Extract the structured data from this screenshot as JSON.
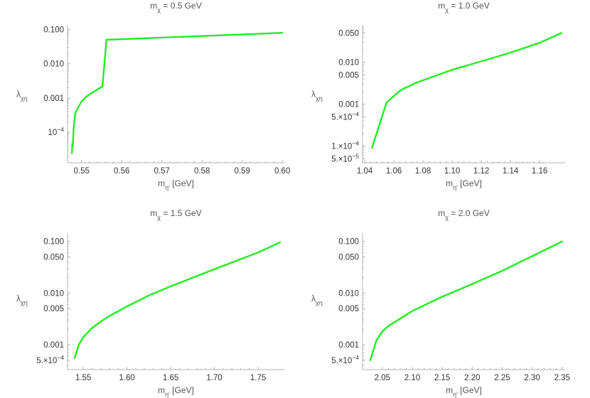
{
  "chart_data": [
    {
      "type": "line",
      "title": "m_χ = 0.5 GeV",
      "title_main": "m",
      "title_sub": "χ",
      "title_rest": " = 0.5 GeV",
      "xlabel_main": "m",
      "xlabel_sub": "η′",
      "xlabel_rest": " [GeV]",
      "ylabel_main": "λ",
      "ylabel_sub": "χη",
      "ylabel_shown": true,
      "xlim": [
        0.5465,
        0.6005
      ],
      "ylim": [
        1.3e-05,
        0.13
      ],
      "yscale": "log",
      "xticks": [
        0.55,
        0.56,
        0.57,
        0.58,
        0.59,
        0.6
      ],
      "xtick_labels": [
        "0.55",
        "0.56",
        "0.57",
        "0.58",
        "0.59",
        "0.60"
      ],
      "yticks": [
        0.1,
        0.01,
        0.001,
        0.0001
      ],
      "ytick_labels": [
        "0.100",
        "0.010",
        "0.001",
        "10^-4"
      ],
      "series": [
        {
          "color": "#22ee22",
          "x": [
            0.5476,
            0.5477,
            0.5478,
            0.548,
            0.5484,
            0.549,
            0.55,
            0.5512,
            0.5525,
            0.554,
            0.5552,
            0.5562,
            0.6
          ],
          "y": [
            2.5e-05,
            4.8e-05,
            4e-05,
            0.00012,
            0.00035,
            0.0005,
            0.0008,
            0.0011,
            0.0014,
            0.0018,
            0.0022,
            0.05,
            0.08
          ]
        }
      ]
    },
    {
      "type": "line",
      "title": "m_χ = 1.0 GeV",
      "title_main": "m",
      "title_sub": "χ",
      "title_rest": " = 1.0 GeV",
      "xlabel_main": "m",
      "xlabel_sub": "η′",
      "xlabel_rest": " [GeV]",
      "ylabel_main": "λ",
      "ylabel_sub": "χη",
      "ylabel_shown": true,
      "xlim": [
        1.0385,
        1.1775
      ],
      "ylim": [
        4e-05,
        0.075
      ],
      "yscale": "log",
      "xticks": [
        1.04,
        1.06,
        1.08,
        1.1,
        1.12,
        1.14,
        1.16
      ],
      "xtick_labels": [
        "1.04",
        "1.06",
        "1.08",
        "1.10",
        "1.12",
        "1.14",
        "1.16"
      ],
      "yticks": [
        0.05,
        0.01,
        0.005,
        0.001,
        0.0005,
        0.0001,
        5e-05
      ],
      "ytick_labels": [
        "0.050",
        "0.010",
        "0.005",
        "0.001",
        "5.×10^-4",
        "1.×10^-4",
        "5.×10^-5"
      ],
      "series": [
        {
          "color": "#22ee22",
          "x": [
            1.045,
            1.055,
            1.065,
            1.075,
            1.085,
            1.1,
            1.12,
            1.14,
            1.16,
            1.175
          ],
          "y": [
            9e-05,
            0.0011,
            0.0022,
            0.0032,
            0.0043,
            0.0066,
            0.0105,
            0.017,
            0.029,
            0.05
          ]
        }
      ]
    },
    {
      "type": "line",
      "title": "m_χ = 1.5 GeV",
      "title_main": "m",
      "title_sub": "χ",
      "title_rest": " = 1.5 GeV",
      "xlabel_main": "m",
      "xlabel_sub": "η′",
      "xlabel_rest": " [GeV]",
      "ylabel_main": "λ",
      "ylabel_sub": "χη",
      "ylabel_shown": true,
      "xlim": [
        1.532,
        1.78
      ],
      "ylim": [
        0.00033,
        0.145
      ],
      "yscale": "log",
      "xticks": [
        1.55,
        1.6,
        1.65,
        1.7,
        1.75
      ],
      "xtick_labels": [
        "1.55",
        "1.60",
        "1.65",
        "1.70",
        "1.75"
      ],
      "yticks": [
        0.1,
        0.05,
        0.01,
        0.005,
        0.001,
        0.0005
      ],
      "ytick_labels": [
        "0.100",
        "0.050",
        "0.010",
        "0.005",
        "0.001",
        "5.×10^-4"
      ],
      "series": [
        {
          "color": "#22ee22",
          "x": [
            1.54,
            1.545,
            1.55,
            1.56,
            1.57,
            1.58,
            1.6,
            1.625,
            1.65,
            1.7,
            1.75,
            1.775
          ],
          "y": [
            0.00055,
            0.001,
            0.0014,
            0.0021,
            0.0028,
            0.0036,
            0.0055,
            0.009,
            0.0135,
            0.029,
            0.061,
            0.096
          ]
        }
      ]
    },
    {
      "type": "line",
      "title": "m_χ = 2.0 GeV",
      "title_main": "m",
      "title_sub": "χ",
      "title_rest": " = 2.0 GeV",
      "xlabel_main": "m",
      "xlabel_sub": "η′",
      "xlabel_rest": " [GeV]",
      "ylabel_main": "λ",
      "ylabel_sub": "χη",
      "ylabel_shown": true,
      "xlim": [
        2.017,
        2.355
      ],
      "ylim": [
        0.00033,
        0.145
      ],
      "yscale": "log",
      "xticks": [
        2.05,
        2.1,
        2.15,
        2.2,
        2.25,
        2.3,
        2.35
      ],
      "xtick_labels": [
        "2.05",
        "2.10",
        "2.15",
        "2.20",
        "2.25",
        "2.30",
        "2.35"
      ],
      "yticks": [
        0.1,
        0.05,
        0.01,
        0.005,
        0.001,
        0.0005
      ],
      "ytick_labels": [
        "0.100",
        "0.050",
        "0.010",
        "0.005",
        "0.001",
        "5.×10^-4"
      ],
      "series": [
        {
          "color": "#22ee22",
          "x": [
            2.03,
            2.04,
            2.05,
            2.06,
            2.08,
            2.1,
            2.15,
            2.2,
            2.25,
            2.3,
            2.35
          ],
          "y": [
            0.0005,
            0.0012,
            0.0018,
            0.0023,
            0.0032,
            0.0045,
            0.0085,
            0.015,
            0.027,
            0.052,
            0.1
          ]
        }
      ]
    }
  ]
}
